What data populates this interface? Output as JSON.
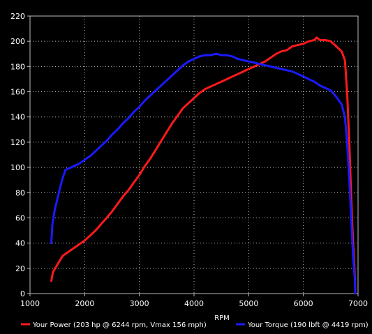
{
  "chart_data": {
    "type": "line",
    "title": "",
    "xlabel": "RPM",
    "ylabel": "",
    "xlim": [
      1000,
      7000
    ],
    "ylim": [
      0,
      220
    ],
    "xticks": [
      1000,
      2000,
      3000,
      4000,
      5000,
      6000,
      7000
    ],
    "yticks": [
      0,
      20,
      40,
      60,
      80,
      100,
      120,
      140,
      160,
      180,
      200,
      220
    ],
    "grid": true,
    "legend_position": "bottom",
    "series": [
      {
        "name": "Your Power (203 hp @ 6244 rpm, Vmax 156 mph)",
        "color": "#ff1a1a",
        "x": [
          1390,
          1420,
          1500,
          1600,
          1700,
          1800,
          1900,
          2000,
          2100,
          2200,
          2300,
          2400,
          2500,
          2600,
          2700,
          2800,
          2900,
          3000,
          3100,
          3200,
          3300,
          3400,
          3500,
          3600,
          3700,
          3800,
          3900,
          4000,
          4100,
          4200,
          4300,
          4400,
          4500,
          4600,
          4700,
          4800,
          4900,
          5000,
          5100,
          5200,
          5300,
          5400,
          5500,
          5600,
          5700,
          5800,
          5900,
          6000,
          6100,
          6200,
          6244,
          6300,
          6400,
          6500,
          6600,
          6700,
          6760,
          6800,
          6840,
          6880,
          6910,
          6940,
          6950
        ],
        "y": [
          10,
          17,
          23,
          30,
          33,
          36,
          39,
          42,
          46,
          50,
          55,
          60,
          65,
          71,
          77,
          82,
          88,
          94,
          101,
          107,
          114,
          121,
          128,
          135,
          141,
          147,
          151,
          155,
          159,
          162,
          164,
          166,
          168,
          170,
          172,
          174,
          176,
          178,
          180,
          182,
          184,
          187,
          190,
          192,
          193,
          196,
          197,
          198,
          200,
          201,
          203,
          201,
          201,
          200,
          196,
          192,
          185,
          160,
          120,
          70,
          40,
          15,
          0
        ]
      },
      {
        "name": "Your Torque (190 lbft @ 4419 rpm)",
        "color": "#1a1aff",
        "x": [
          1390,
          1410,
          1450,
          1500,
          1550,
          1600,
          1650,
          1700,
          1800,
          1900,
          2000,
          2100,
          2200,
          2300,
          2400,
          2500,
          2600,
          2700,
          2800,
          2900,
          3000,
          3100,
          3200,
          3300,
          3400,
          3500,
          3600,
          3700,
          3800,
          3900,
          4000,
          4100,
          4200,
          4300,
          4400,
          4419,
          4500,
          4600,
          4700,
          4800,
          4900,
          5000,
          5100,
          5200,
          5300,
          5400,
          5500,
          5600,
          5700,
          5800,
          5900,
          6000,
          6100,
          6200,
          6300,
          6400,
          6500,
          6600,
          6700,
          6760,
          6800,
          6840,
          6880,
          6910,
          6940,
          6950
        ],
        "y": [
          40,
          55,
          66,
          75,
          84,
          92,
          98,
          99,
          101,
          103,
          106,
          109,
          113,
          117,
          121,
          126,
          130,
          135,
          139,
          144,
          148,
          153,
          157,
          161,
          165,
          169,
          173,
          177,
          181,
          184,
          186,
          188,
          189,
          189,
          190,
          190,
          189,
          189,
          188,
          186,
          185,
          184,
          183,
          182,
          181,
          180,
          179,
          178,
          177,
          176,
          174,
          172,
          170,
          168,
          165,
          163,
          161,
          156,
          150,
          140,
          120,
          90,
          55,
          30,
          12,
          0
        ]
      }
    ]
  }
}
